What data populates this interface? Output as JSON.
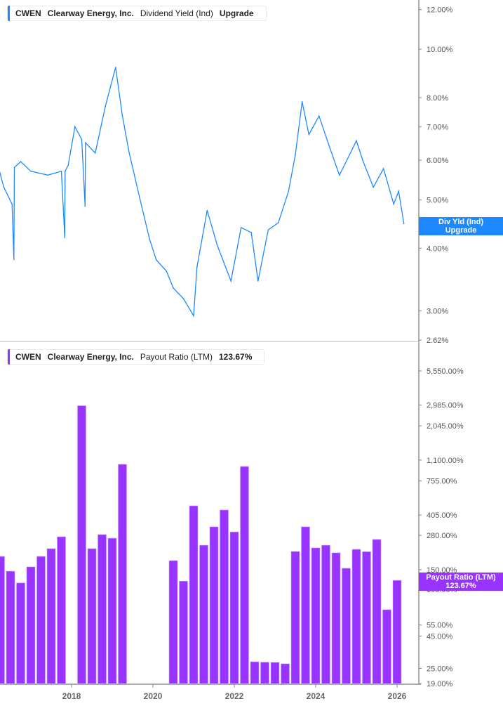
{
  "top_legend": {
    "ticker": "CWEN",
    "company": "Clearway Energy, Inc.",
    "metric": "Dividend Yield (Ind)",
    "value": "Upgrade",
    "color": "#1e88ff"
  },
  "bottom_legend": {
    "ticker": "CWEN",
    "company": "Clearway Energy, Inc.",
    "metric": "Payout Ratio (LTM)",
    "value": "123.67%",
    "color": "#9933ff"
  },
  "top_tag": {
    "line1": "Div Yld (Ind)",
    "line2": "Upgrade"
  },
  "bottom_tag": {
    "line1": "Payout Ratio (LTM)",
    "line2": "123.67%"
  },
  "chart_data": [
    {
      "type": "line",
      "scale": "log",
      "ylim": [
        2.62,
        12.5
      ],
      "yticks": [
        {
          "v": 12,
          "label": "12.00%"
        },
        {
          "v": 10,
          "label": "10.00%"
        },
        {
          "v": 8,
          "label": "8.00%"
        },
        {
          "v": 7,
          "label": "7.00%"
        },
        {
          "v": 6,
          "label": "6.00%"
        },
        {
          "v": 5,
          "label": "5.00%"
        },
        {
          "v": 4,
          "label": "4.00%"
        },
        {
          "v": 3,
          "label": "3.00%"
        },
        {
          "v": 2.62,
          "label": "2.62%"
        }
      ],
      "x": [
        "2016-03-01",
        "2016-05-01",
        "2016-07-15",
        "2016-08-01",
        "2016-08-05",
        "2016-10-01",
        "2017-01-01",
        "2017-06-01",
        "2017-10-01",
        "2017-11-01",
        "2017-11-04",
        "2017-12-01",
        "2018-02-01",
        "2018-04-01",
        "2018-05-01",
        "2018-05-04",
        "2018-08-01",
        "2018-11-01",
        "2019-02-01",
        "2019-04-01",
        "2019-06-01",
        "2019-09-01",
        "2019-12-01",
        "2020-02-01",
        "2020-05-01",
        "2020-07-01",
        "2020-10-01",
        "2021-01-01",
        "2021-02-01",
        "2021-05-01",
        "2021-08-01",
        "2021-12-01",
        "2022-03-01",
        "2022-06-01",
        "2022-08-01",
        "2022-11-01",
        "2023-02-01",
        "2023-05-01",
        "2023-07-01",
        "2023-09-01",
        "2023-11-01",
        "2024-02-01",
        "2024-05-01",
        "2024-08-01",
        "2024-10-01",
        "2025-01-01",
        "2025-03-01",
        "2025-06-01",
        "2025-09-01",
        "2025-12-01",
        "2026-01-15",
        "2026-03-01"
      ],
      "values": [
        5.96,
        5.3,
        4.9,
        3.8,
        5.8,
        5.96,
        5.7,
        5.6,
        5.7,
        4.2,
        5.7,
        5.86,
        7.0,
        6.6,
        4.85,
        6.5,
        6.2,
        7.7,
        9.2,
        7.35,
        6.2,
        5.07,
        4.17,
        3.79,
        3.6,
        3.33,
        3.17,
        2.93,
        3.67,
        4.76,
        4.05,
        3.44,
        4.4,
        4.3,
        3.44,
        4.35,
        4.5,
        5.2,
        6.15,
        7.85,
        6.75,
        7.35,
        6.4,
        5.6,
        5.96,
        6.56,
        5.96,
        5.3,
        5.77,
        4.9,
        5.2,
        4.48
      ],
      "grid": false
    },
    {
      "type": "bar",
      "scale": "log",
      "ylim": [
        19,
        6500
      ],
      "yticks": [
        {
          "v": 5550,
          "label": "5,550.00%"
        },
        {
          "v": 2985,
          "label": "2,985.00%"
        },
        {
          "v": 2045,
          "label": "2,045.00%"
        },
        {
          "v": 1100,
          "label": "1,100.00%"
        },
        {
          "v": 755,
          "label": "755.00%"
        },
        {
          "v": 405,
          "label": "405.00%"
        },
        {
          "v": 280,
          "label": "280.00%"
        },
        {
          "v": 150,
          "label": "150.00%"
        },
        {
          "v": 105,
          "label": "105.00%"
        },
        {
          "v": 55,
          "label": "55.00%"
        },
        {
          "v": 45,
          "label": "45.00%"
        },
        {
          "v": 25,
          "label": "25.00%"
        },
        {
          "v": 19,
          "label": "19.00%"
        }
      ],
      "categories": [
        "2016-04",
        "2016-07",
        "2016-10",
        "2017-01",
        "2017-04",
        "2017-07",
        "2017-10",
        "2018-04",
        "2018-07",
        "2018-10",
        "2019-01",
        "2019-04",
        "2020-07",
        "2020-10",
        "2021-01",
        "2021-04",
        "2021-07",
        "2021-10",
        "2022-01",
        "2022-04",
        "2022-07",
        "2022-10",
        "2023-01",
        "2023-04",
        "2023-07",
        "2023-10",
        "2024-01",
        "2024-04",
        "2024-07",
        "2024-10",
        "2025-01",
        "2025-04",
        "2025-07",
        "2025-10",
        "2026-01"
      ],
      "values": [
        191,
        146,
        118,
        158,
        191,
        220,
        273,
        2950,
        220,
        284,
        266,
        1017,
        177,
        122,
        479,
        234,
        327,
        444,
        298,
        978,
        28.2,
        28.0,
        27.9,
        27.2,
        209,
        327,
        223,
        234,
        204,
        154,
        217,
        208,
        260,
        72.6,
        123.67
      ],
      "xticks": [
        "2018",
        "2020",
        "2022",
        "2024",
        "2026"
      ],
      "grid": false
    }
  ]
}
